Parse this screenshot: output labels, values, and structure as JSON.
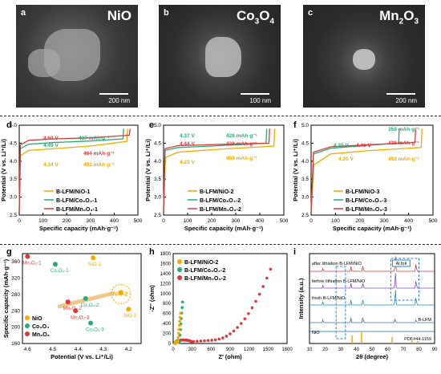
{
  "sem": [
    {
      "label": "a",
      "title": "NiO",
      "title_sub": "",
      "scale": "200 nm"
    },
    {
      "label": "b",
      "title": "Co",
      "title_sub": "3",
      "title2": "O",
      "title2_sub": "4",
      "scale": "100 nm"
    },
    {
      "label": "c",
      "title": "Mn",
      "title_sub": "2",
      "title2": "O",
      "title2_sub": "3",
      "scale": "200 nm"
    }
  ],
  "chart_data": [
    {
      "id": "d",
      "type": "line",
      "xlabel": "Specific capacity (mAh·g⁻¹)",
      "ylabel": "Potential (V vs. Li⁺/Li)",
      "xlim": [
        0,
        500
      ],
      "ylim": [
        2.5,
        5.0
      ],
      "xticks": [
        0,
        100,
        200,
        300,
        400,
        500
      ],
      "yticks": [
        "2.5",
        "3.0",
        "3.5",
        "4.0",
        "4.5",
        "5.0"
      ],
      "series": [
        {
          "name": "B-LFM/NiO-1",
          "color": "#f2a900",
          "points": [
            [
              0,
              2.6
            ],
            [
              5,
              4.15
            ],
            [
              40,
              4.3
            ],
            [
              150,
              4.35
            ],
            [
              300,
              4.42
            ],
            [
              453,
              4.55
            ],
            [
              456,
              4.9
            ]
          ]
        },
        {
          "name": "B-LFM/Co3O4-1",
          "color": "#2aa876",
          "points": [
            [
              0,
              2.6
            ],
            [
              5,
              4.35
            ],
            [
              40,
              4.47
            ],
            [
              150,
              4.52
            ],
            [
              300,
              4.56
            ],
            [
              437,
              4.62
            ],
            [
              440,
              4.9
            ]
          ]
        },
        {
          "name": "B-LFM/Mn2O3-1",
          "color": "#d93a3a",
          "points": [
            [
              0,
              2.6
            ],
            [
              4,
              4.45
            ],
            [
              40,
              4.58
            ],
            [
              150,
              4.62
            ],
            [
              300,
              4.65
            ],
            [
              464,
              4.72
            ],
            [
              467,
              4.9
            ]
          ]
        }
      ],
      "annotations": [
        {
          "text": "4.60 V",
          "color": "#d93a3a"
        },
        {
          "text": "437 mAh·g⁻¹",
          "color": "#2aa876"
        },
        {
          "text": "4.49 V",
          "color": "#2aa876"
        },
        {
          "text": "464 mAh·g⁻¹",
          "color": "#d93a3a"
        },
        {
          "text": "4.34 V",
          "color": "#f2a900"
        },
        {
          "text": "453 mAh·g⁻¹",
          "color": "#f2a900"
        }
      ],
      "legend": [
        "B-LFM/NiO-1",
        "B-LFM/Co₃O₄-1",
        "B-LFM/Mn₂O₃-1"
      ]
    },
    {
      "id": "e",
      "type": "line",
      "xlabel": "Specific capacity (mAh·g⁻¹)",
      "ylabel": "Potential (V vs. Li⁺/Li)",
      "xlim": [
        0,
        500
      ],
      "ylim": [
        2.5,
        5.0
      ],
      "xticks": [
        0,
        100,
        200,
        300,
        400,
        500
      ],
      "yticks": [
        "2.5",
        "3.0",
        "3.5",
        "4.0",
        "4.5",
        "5.0"
      ],
      "series": [
        {
          "name": "B-LFM/NiO-2",
          "color": "#f2a900",
          "points": [
            [
              0,
              2.6
            ],
            [
              8,
              4.1
            ],
            [
              60,
              4.25
            ],
            [
              200,
              4.32
            ],
            [
              459,
              4.42
            ],
            [
              462,
              4.9
            ]
          ]
        },
        {
          "name": "B-LFM/Co3O4-2",
          "color": "#2aa876",
          "points": [
            [
              0,
              2.6
            ],
            [
              6,
              4.3
            ],
            [
              60,
              4.38
            ],
            [
              200,
              4.42
            ],
            [
              426,
              4.5
            ],
            [
              429,
              4.9
            ]
          ]
        },
        {
          "name": "B-LFM/Mn2O3-2",
          "color": "#d93a3a",
          "points": [
            [
              0,
              2.6
            ],
            [
              6,
              4.35
            ],
            [
              60,
              4.43
            ],
            [
              200,
              4.46
            ],
            [
              438,
              4.5
            ],
            [
              441,
              4.9
            ]
          ]
        }
      ],
      "annotations": [
        {
          "text": "4.37 V",
          "color": "#2aa876"
        },
        {
          "text": "426 mAh·g⁻¹",
          "color": "#2aa876"
        },
        {
          "text": "4.44 V",
          "color": "#d93a3a"
        },
        {
          "text": "438 mAh·g⁻¹",
          "color": "#d93a3a"
        },
        {
          "text": "4.23 V",
          "color": "#f2a900"
        },
        {
          "text": "459 mAh·g⁻¹",
          "color": "#f2a900"
        }
      ],
      "legend": [
        "B-LFM/NiO-2",
        "B-LFM/Co₃O₄-2",
        "B-LFM/Mn₂O₃-2"
      ]
    },
    {
      "id": "f",
      "type": "line",
      "xlabel": "Specific capacity (mAh·g⁻¹)",
      "ylabel": "Potential (V vs. Li⁺/Li)",
      "xlim": [
        0,
        500
      ],
      "ylim": [
        2.5,
        5.0
      ],
      "xticks": [
        0,
        100,
        200,
        300,
        400,
        500
      ],
      "yticks": [
        "2.5",
        "3.0",
        "3.5",
        "4.0",
        "4.5",
        "5.0"
      ],
      "series": [
        {
          "name": "B-LFM/NiO-3",
          "color": "#f2a900",
          "points": [
            [
              0,
              2.6
            ],
            [
              12,
              3.9
            ],
            [
              80,
              4.2
            ],
            [
              250,
              4.3
            ],
            [
              452,
              4.38
            ],
            [
              455,
              4.9
            ]
          ]
        },
        {
          "name": "B-LFM/Co3O4-3",
          "color": "#2aa876",
          "points": [
            [
              0,
              2.6
            ],
            [
              10,
              4.2
            ],
            [
              80,
              4.36
            ],
            [
              250,
              4.45
            ],
            [
              359,
              4.5
            ],
            [
              362,
              4.9
            ]
          ]
        },
        {
          "name": "B-LFM/Mn2O3-3",
          "color": "#d93a3a",
          "points": [
            [
              0,
              2.6
            ],
            [
              10,
              4.25
            ],
            [
              80,
              4.4
            ],
            [
              250,
              4.46
            ],
            [
              426,
              4.52
            ],
            [
              429,
              4.9
            ]
          ]
        }
      ],
      "annotations": [
        {
          "text": "359 mAh·g⁻¹",
          "color": "#2aa876"
        },
        {
          "text": "426 mAh·g⁻¹",
          "color": "#d93a3a"
        },
        {
          "text": "4.35 V",
          "color": "#2aa876"
        },
        {
          "text": "4.41 V",
          "color": "#d93a3a"
        },
        {
          "text": "4.20 V",
          "color": "#f2a900"
        },
        {
          "text": "452 mAh·g⁻¹",
          "color": "#f2a900"
        }
      ],
      "legend": [
        "B-LFM/NiO-3",
        "B-LFM/Co₃O₄-3",
        "B-LFM/Mn₂O₃-3"
      ]
    },
    {
      "id": "g",
      "type": "scatter",
      "xlabel": "Potential (V vs. Li⁺/Li)",
      "ylabel": "Specific capacity (mAh·g⁻¹)",
      "xlim": [
        4.62,
        4.15
      ],
      "ylim": [
        160,
        380
      ],
      "xticks": [
        "4.6",
        "4.5",
        "4.4",
        "4.3",
        "4.2"
      ],
      "yticks": [
        "160",
        "200",
        "240",
        "280",
        "320",
        "360"
      ],
      "points": [
        {
          "label": "Mn₂O₃-1",
          "x": 4.6,
          "y": 373,
          "color": "#d93a3a"
        },
        {
          "label": "Co₃O₄-1",
          "x": 4.49,
          "y": 354,
          "color": "#2aa876"
        },
        {
          "label": "NiO-1",
          "x": 4.34,
          "y": 370,
          "color": "#f2a900"
        },
        {
          "label": "Mn₂O₃-2",
          "x": 4.44,
          "y": 262,
          "color": "#d93a3a"
        },
        {
          "label": "Co₃O₄-2",
          "x": 4.37,
          "y": 270,
          "color": "#2aa876"
        },
        {
          "label": "NiO-2",
          "x": 4.23,
          "y": 285,
          "color": "#f2a900"
        },
        {
          "label": "Mn₂O₃-3",
          "x": 4.41,
          "y": 240,
          "color": "#d93a3a"
        },
        {
          "label": "Co₃O₄-3",
          "x": 4.35,
          "y": 210,
          "color": "#2aa876"
        },
        {
          "label": "NiO-3",
          "x": 4.2,
          "y": 244,
          "color": "#f2a900"
        }
      ],
      "legend": [
        "NiO",
        "Co₃O₄",
        "Mn₂O₃"
      ],
      "highlight": "NiO-2"
    },
    {
      "id": "h",
      "type": "scatter",
      "xlabel": "Z' (ohm)",
      "ylabel": "-Z'' (ohm)",
      "xlim": [
        0,
        1800
      ],
      "ylim": [
        0,
        1800
      ],
      "xticks": [
        "0",
        "300",
        "600",
        "900",
        "1200",
        "1500",
        "1800"
      ],
      "yticks": [
        "0",
        "200",
        "400",
        "600",
        "800",
        "1000",
        "1200",
        "1400",
        "1600",
        "1800"
      ],
      "series": [
        {
          "name": "B-LFM/NiO-2",
          "color": "#f2a900"
        },
        {
          "name": "B-LFM/Co3O4-2",
          "color": "#2aa876"
        },
        {
          "name": "B-LFM/Mn2O3-2",
          "color": "#d93a3a"
        }
      ],
      "legend": [
        "B-LFM/NiO-2",
        "B-LFM/Co₃O₄-2",
        "B-LFM/Mn₂O₃-2"
      ]
    },
    {
      "id": "i",
      "type": "line",
      "xlabel": "2θ (degree)",
      "ylabel": "Intensity (a.u.)",
      "xlim": [
        10,
        90
      ],
      "xticks": [
        "10",
        "20",
        "30",
        "40",
        "50",
        "60",
        "70",
        "80",
        "90"
      ],
      "traces": [
        "after lithiation B-LFM/NiO",
        "before lithiation B-LFM/NiO",
        "fresh B-LFM/NiO",
        "B-LFM",
        "NiO"
      ],
      "ref_label": "PDF#44-1159",
      "foil_label": "Al foil"
    }
  ]
}
